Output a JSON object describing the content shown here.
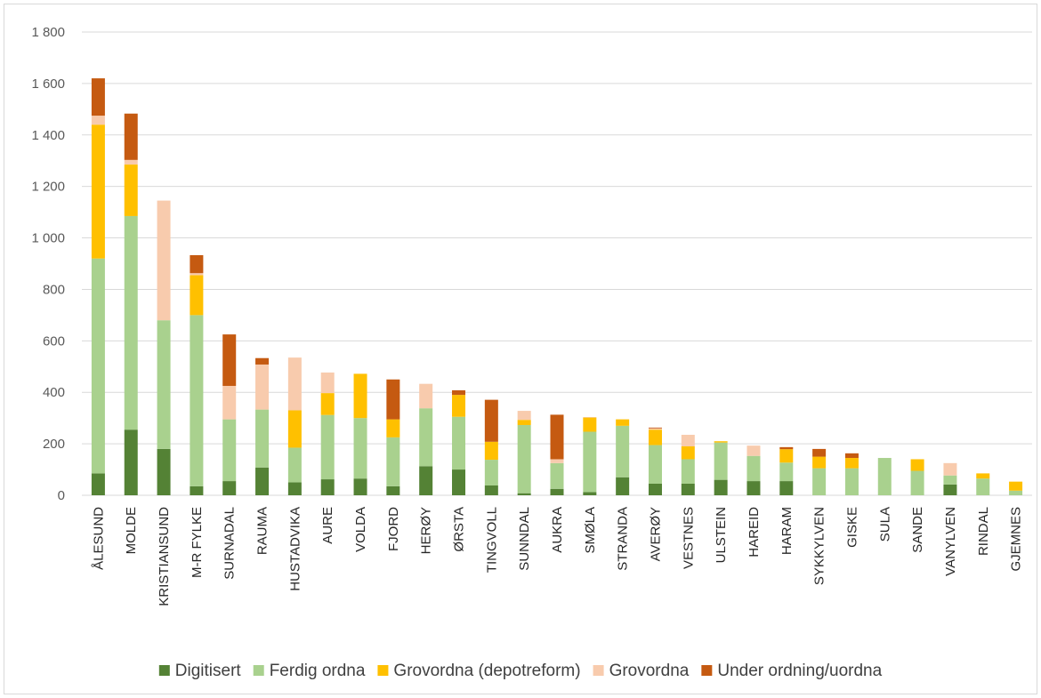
{
  "chart_data": {
    "type": "bar",
    "stacked": true,
    "categories": [
      "ÅLESUND",
      "MOLDE",
      "KRISTIANSUND",
      "M-R FYLKE",
      "SURNADAL",
      "RAUMA",
      "HUSTADVIKA",
      "AURE",
      "VOLDA",
      "FJORD",
      "HERØY",
      "ØRSTA",
      "TINGVOLL",
      "SUNNDAL",
      "AUKRA",
      "SMØLA",
      "STRANDA",
      "AVERØY",
      "VESTNES",
      "ULSTEIN",
      "HAREID",
      "HARAM",
      "SYKKYLVEN",
      "GISKE",
      "SULA",
      "SANDE",
      "VANYLVEN",
      "RINDAL",
      "GJEMNES"
    ],
    "series": [
      {
        "name": "Digitisert",
        "color": "#548235",
        "values": [
          85,
          255,
          180,
          35,
          55,
          108,
          50,
          62,
          65,
          35,
          113,
          100,
          38,
          8,
          25,
          12,
          70,
          45,
          45,
          60,
          55,
          55,
          0,
          0,
          0,
          0,
          42,
          0,
          0
        ]
      },
      {
        "name": "Ferdig ordna",
        "color": "#a9d18e",
        "values": [
          835,
          830,
          500,
          665,
          240,
          225,
          135,
          250,
          235,
          190,
          225,
          205,
          100,
          265,
          100,
          235,
          200,
          150,
          95,
          145,
          98,
          72,
          105,
          105,
          145,
          95,
          35,
          65,
          18
        ]
      },
      {
        "name": "Grovordna (depotreform)",
        "color": "#ffc000",
        "values": [
          520,
          200,
          0,
          155,
          0,
          0,
          145,
          85,
          172,
          70,
          0,
          85,
          70,
          20,
          0,
          55,
          25,
          60,
          50,
          5,
          0,
          52,
          45,
          40,
          0,
          45,
          0,
          20,
          35
        ]
      },
      {
        "name": "Grovordna",
        "color": "#f8cbad",
        "values": [
          35,
          18,
          465,
          8,
          130,
          175,
          205,
          80,
          0,
          0,
          95,
          0,
          0,
          35,
          15,
          2,
          0,
          5,
          45,
          0,
          40,
          0,
          0,
          0,
          0,
          0,
          48,
          0,
          0
        ]
      },
      {
        "name": "Under ordning/uordna",
        "color": "#c55a11",
        "values": [
          145,
          180,
          0,
          70,
          200,
          25,
          0,
          0,
          0,
          155,
          0,
          18,
          163,
          0,
          173,
          0,
          0,
          3,
          0,
          0,
          0,
          8,
          30,
          18,
          0,
          0,
          0,
          0,
          0
        ]
      }
    ],
    "yticks": [
      "1 800",
      "1 600",
      "1 400",
      "1 200",
      "1 000",
      "800",
      "600",
      "400",
      "200",
      "0"
    ],
    "ylim": [
      0,
      1800
    ],
    "grid": true,
    "legend_position": "bottom"
  }
}
